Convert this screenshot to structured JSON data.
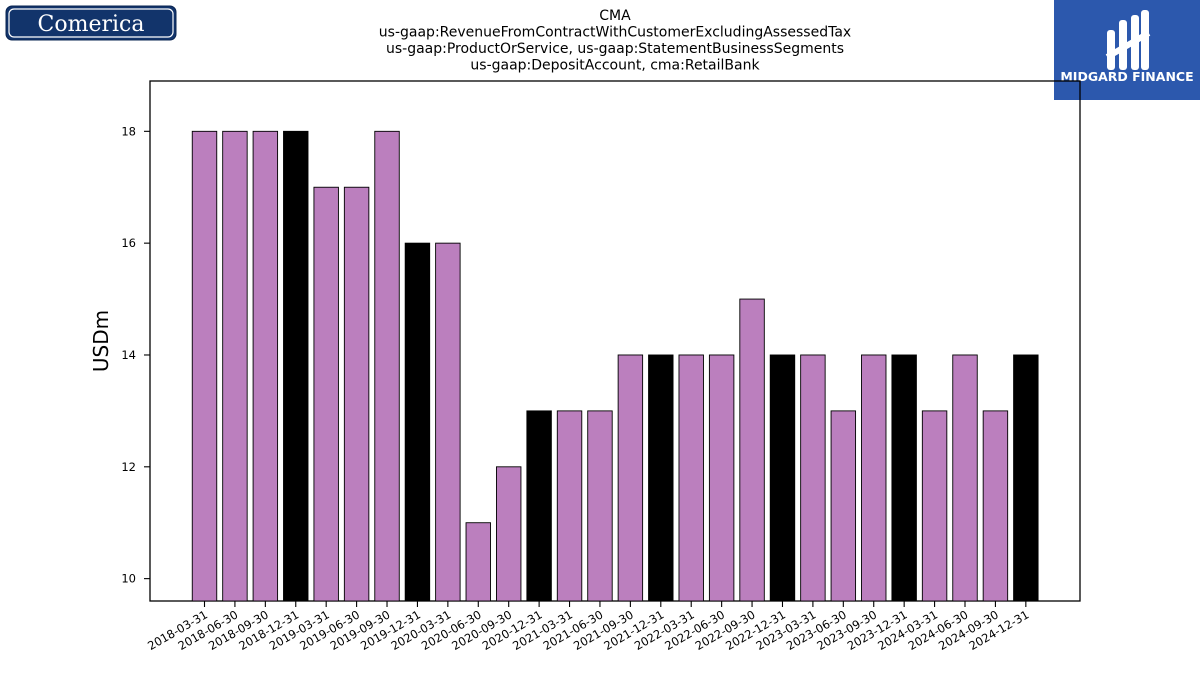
{
  "logos": {
    "left_text": "Comerica",
    "right_text": "MIDGARD FINANCE"
  },
  "colors": {
    "bar_default": "#bb7fbe",
    "bar_highlight": "#000000",
    "logo_left_bg": "#12346b",
    "logo_right_bg": "#2c58ad"
  },
  "chart_data": {
    "type": "bar",
    "title_lines": [
      "CMA",
      "us-gaap:RevenueFromContractWithCustomerExcludingAssessedTax",
      "us-gaap:ProductOrService, us-gaap:StatementBusinessSegments",
      "us-gaap:DepositAccount, cma:RetailBank"
    ],
    "xlabel": "",
    "ylabel": "USDm",
    "ylim": [
      9.6,
      18.9
    ],
    "yticks": [
      10,
      12,
      14,
      16,
      18
    ],
    "grid": false,
    "categories": [
      "2018-03-31",
      "2018-06-30",
      "2018-09-30",
      "2018-12-31",
      "2019-03-31",
      "2019-06-30",
      "2019-09-30",
      "2019-12-31",
      "2020-03-31",
      "2020-06-30",
      "2020-09-30",
      "2020-12-31",
      "2021-03-31",
      "2021-06-30",
      "2021-09-30",
      "2021-12-31",
      "2022-03-31",
      "2022-06-30",
      "2022-09-30",
      "2022-12-31",
      "2023-03-31",
      "2023-06-30",
      "2023-09-30",
      "2023-12-31",
      "2024-03-31",
      "2024-06-30",
      "2024-09-30",
      "2024-12-31"
    ],
    "values": [
      18,
      18,
      18,
      18,
      17,
      17,
      18,
      16,
      16,
      11,
      12,
      13,
      13,
      13,
      14,
      14,
      14,
      14,
      15,
      14,
      14,
      13,
      14,
      14,
      13,
      14,
      13,
      14
    ],
    "highlight": [
      false,
      false,
      false,
      true,
      false,
      false,
      false,
      true,
      false,
      false,
      false,
      true,
      false,
      false,
      false,
      true,
      false,
      false,
      false,
      true,
      false,
      false,
      false,
      true,
      false,
      false,
      false,
      true
    ]
  }
}
